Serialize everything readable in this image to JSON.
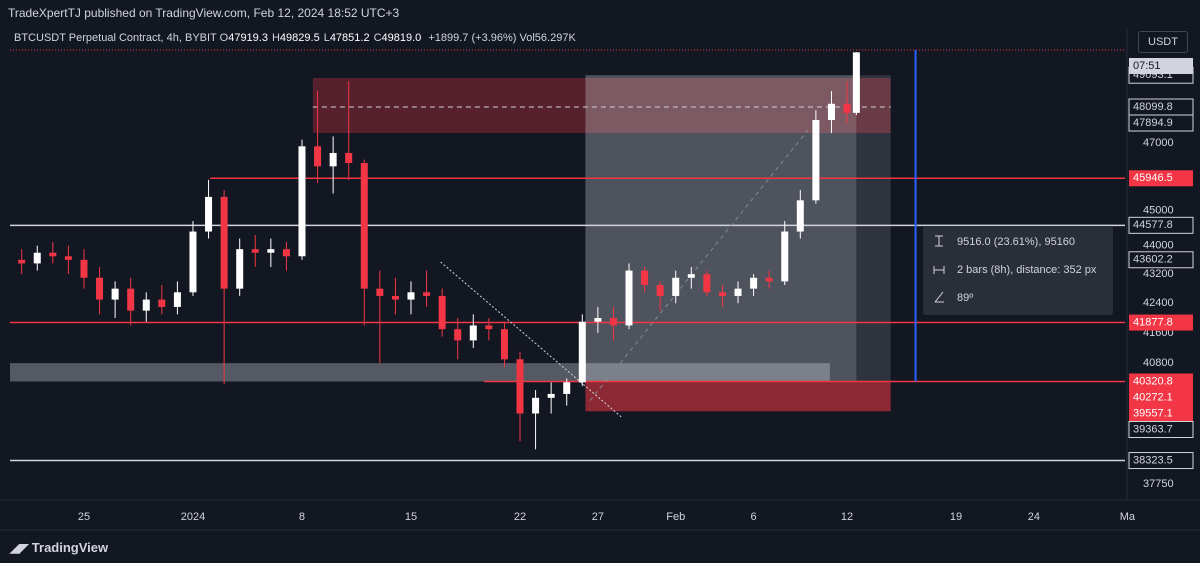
{
  "header": {
    "publisher": "TradeXpertTJ published on TradingView.com, Feb 12, 2024 18:52 UTC+3",
    "symbol": "BTCUSDT Perpetual Contract, 4h, BYBIT",
    "legend": [
      [
        "O",
        "47919.3"
      ],
      [
        "H",
        "49829.5"
      ],
      [
        "L",
        "47851.2"
      ],
      [
        "C",
        "49819.0"
      ]
    ],
    "change": "+1899.7 (+3.96%)",
    "volume_label": "Vol",
    "volume": "56.297K"
  },
  "currency": "USDT",
  "countdown": "07:51",
  "measure": [
    "9516.0 (23.61%), 95160",
    "2 bars (8h), distance: 352 px",
    "89º"
  ],
  "footer": "TradingView",
  "chart_data": {
    "type": "candlestick",
    "log_scale": true,
    "up_color": "#ffffff",
    "down_color": "#f23645",
    "x": [
      -4,
      -3,
      -2,
      -1,
      0,
      1,
      2,
      3,
      4,
      5,
      6,
      7,
      8,
      9,
      10,
      11,
      12,
      13,
      14,
      15,
      16,
      17,
      18,
      19,
      20,
      21,
      22,
      23,
      24,
      25,
      26,
      27,
      28,
      29,
      30,
      31,
      32,
      33,
      34,
      35,
      36,
      37,
      38,
      39,
      40,
      41,
      42,
      43,
      44,
      45,
      46,
      47,
      48,
      49,
      49.6
    ],
    "open": [
      43600,
      43500,
      43800,
      43700,
      43600,
      43100,
      42500,
      42800,
      42200,
      42500,
      42300,
      42700,
      44400,
      45400,
      42800,
      43900,
      43800,
      43900,
      43700,
      46900,
      46300,
      46700,
      46400,
      42800,
      42600,
      42500,
      42700,
      42600,
      41700,
      41400,
      41800,
      41700,
      40900,
      39500,
      39900,
      40000,
      40300,
      41900,
      42000,
      41800,
      43300,
      42900,
      42600,
      43100,
      43200,
      42700,
      42600,
      42800,
      43100,
      43000,
      44400,
      45300,
      47700,
      48200,
      47919.3
    ],
    "high": [
      43900,
      44000,
      44100,
      44000,
      43900,
      43400,
      43000,
      43100,
      42700,
      42900,
      43000,
      44700,
      45900,
      45600,
      44200,
      44300,
      44200,
      44100,
      47100,
      48600,
      47200,
      48900,
      46500,
      43300,
      43100,
      43000,
      43300,
      42800,
      42000,
      42100,
      42000,
      41900,
      41100,
      40100,
      40300,
      40400,
      42100,
      42300,
      42300,
      43500,
      43400,
      43000,
      43300,
      43400,
      43300,
      42900,
      43000,
      43200,
      43300,
      44700,
      45600,
      48000,
      48600,
      48900,
      49829.5
    ],
    "low": [
      43200,
      43300,
      43500,
      43200,
      42800,
      42100,
      42000,
      41800,
      41900,
      42100,
      42100,
      42600,
      44200,
      40250,
      42600,
      43400,
      43400,
      43300,
      43600,
      45800,
      45500,
      45900,
      41800,
      40800,
      42100,
      42100,
      42300,
      41500,
      40900,
      41200,
      41400,
      40700,
      38800,
      38600,
      39500,
      39700,
      40200,
      41600,
      41400,
      41700,
      42700,
      42200,
      42400,
      42800,
      42600,
      42300,
      42400,
      42600,
      42800,
      42900,
      44200,
      45200,
      47300,
      47600,
      47851.2
    ],
    "close": [
      43500,
      43800,
      43700,
      43600,
      43100,
      42500,
      42800,
      42200,
      42500,
      42300,
      42700,
      44400,
      45400,
      42800,
      43900,
      43800,
      43900,
      43700,
      46900,
      46300,
      46700,
      46400,
      42800,
      42600,
      42500,
      42700,
      42600,
      41700,
      41400,
      41800,
      41700,
      40900,
      39500,
      39900,
      40000,
      40300,
      41900,
      42000,
      41800,
      43300,
      42900,
      42600,
      43100,
      43200,
      42700,
      42600,
      42800,
      43100,
      43000,
      44400,
      45300,
      47700,
      48200,
      47919.3,
      49819.0
    ],
    "xlim": [
      -4.75,
      66.85
    ],
    "ylim": [
      37364,
      49895
    ],
    "xticks": [
      {
        "value": 0,
        "label": "25"
      },
      {
        "value": 7,
        "label": "2024"
      },
      {
        "value": 14,
        "label": "8"
      },
      {
        "value": 21,
        "label": "15"
      },
      {
        "value": 28,
        "label": "22"
      },
      {
        "value": 33,
        "label": "27"
      },
      {
        "value": 38,
        "label": "Feb"
      },
      {
        "value": 43,
        "label": "6"
      },
      {
        "value": 49,
        "label": "12"
      },
      {
        "value": 56,
        "label": "19"
      },
      {
        "value": 61,
        "label": "24"
      },
      {
        "value": 67,
        "label": "Ma"
      }
    ],
    "yticks": [
      37750,
      40800,
      41600,
      42400,
      43200,
      44000,
      45000,
      47000
    ],
    "hlines": [
      {
        "value": 45946.5,
        "color": "#f23645",
        "from": 8.1
      },
      {
        "value": 44577.8,
        "color": "#d1d4dc",
        "from": -4.75
      },
      {
        "value": 41877.8,
        "color": "#f23645",
        "from": -4.75
      },
      {
        "value": 40320.8,
        "color": "#f23645",
        "from": 25.7
      },
      {
        "value": 38323.5,
        "color": "#d1d4dc",
        "from": -4.75
      }
    ],
    "price_tags": [
      {
        "value": 49093.1,
        "color": "#d1d4dc"
      },
      {
        "value": 48099.8,
        "color": "#d1d4dc"
      },
      {
        "value": 47894.9,
        "color": "#d1d4dc"
      },
      {
        "value": 43602.2,
        "color": "#d1d4dc"
      },
      {
        "value": 40272.1,
        "color": "#f23645"
      },
      {
        "value": 39557.1,
        "color": "#f23645"
      },
      {
        "value": 39363.7,
        "color": "#d1d4dc"
      }
    ],
    "zones": [
      {
        "x": [
          14.7,
          51.8
        ],
        "y": [
          49005,
          47303
        ],
        "color": "rgba(242,54,69,0.3)"
      },
      {
        "x": [
          32.2,
          49.6
        ],
        "y": [
          49093.1,
          40320.8
        ],
        "color": "rgba(209,212,220,0.32)"
      },
      {
        "x": [
          49.6,
          51.8
        ],
        "y": [
          49093.1,
          40320.8
        ],
        "color": "rgba(209,212,220,0.15)"
      },
      {
        "x": [
          32.2,
          51.8
        ],
        "y": [
          40320.8,
          39557.1
        ],
        "color": "rgba(242,54,69,0.55)"
      },
      {
        "x": [
          -4.75,
          47.9
        ],
        "y": [
          40800,
          40320.8
        ],
        "color": "rgba(209,212,220,0.35)"
      }
    ],
    "trendlines": [
      {
        "x": [
          14.7,
          51.8
        ],
        "y": [
          48099.8,
          48099.8
        ],
        "color": "#d1d4dc",
        "dash": "5,4"
      },
      {
        "x": [
          22.9,
          34.6
        ],
        "y": [
          43540,
          39380
        ],
        "color": "#d1d4dc",
        "dash": "2,2"
      },
      {
        "x": [
          32.5,
          46.5
        ],
        "y": [
          39830,
          47395
        ],
        "color": "#868993",
        "dash": "4,4"
      },
      {
        "x": [
          53.4,
          53.4
        ],
        "y": [
          49895,
          40320.8
        ],
        "color": "#2962ff",
        "dash": "none"
      }
    ]
  }
}
